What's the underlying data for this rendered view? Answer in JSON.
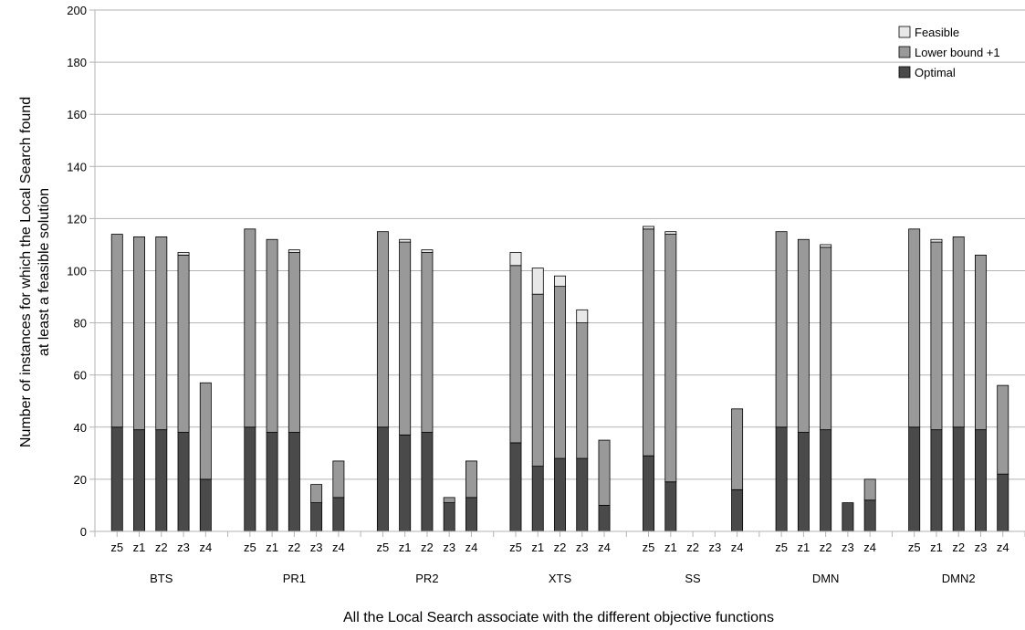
{
  "chart_data": {
    "type": "bar",
    "stacked": true,
    "title": "",
    "ylabel_lines": [
      "Number of instances for which the Local Search found",
      "at least a feasible solution"
    ],
    "xlabel": "All the Local Search associate with the different objective functions",
    "ylim": [
      0,
      200
    ],
    "yticks": [
      0,
      20,
      40,
      60,
      80,
      100,
      120,
      140,
      160,
      180,
      200
    ],
    "grid": true,
    "legend_position": "top-right",
    "groups": [
      "BTS",
      "PR1",
      "PR2",
      "XTS",
      "SS",
      "DMN",
      "DMN2"
    ],
    "subcategories": [
      "z5",
      "z1",
      "z2",
      "z3",
      "z4"
    ],
    "series": [
      {
        "name": "Optimal",
        "color": "#4a4a4a",
        "values": [
          [
            40,
            39,
            39,
            38,
            20
          ],
          [
            40,
            38,
            38,
            11,
            13
          ],
          [
            40,
            37,
            38,
            11,
            13
          ],
          [
            34,
            25,
            28,
            28,
            10
          ],
          [
            29,
            19,
            0,
            0,
            16
          ],
          [
            40,
            38,
            39,
            11,
            12
          ],
          [
            40,
            39,
            40,
            39,
            22
          ]
        ]
      },
      {
        "name": "Lower bound +1",
        "color": "#999999",
        "values": [
          [
            74,
            74,
            74,
            68,
            37
          ],
          [
            76,
            74,
            69,
            7,
            14
          ],
          [
            75,
            74,
            69,
            2,
            14
          ],
          [
            68,
            66,
            66,
            52,
            25
          ],
          [
            87,
            95,
            0,
            0,
            31
          ],
          [
            75,
            74,
            70,
            0,
            8
          ],
          [
            76,
            72,
            73,
            67,
            34
          ]
        ]
      },
      {
        "name": "Feasible",
        "color": "#e8e8e8",
        "values": [
          [
            0,
            0,
            0,
            1,
            0
          ],
          [
            0,
            0,
            1,
            0,
            0
          ],
          [
            0,
            1,
            1,
            0,
            0
          ],
          [
            5,
            10,
            4,
            5,
            0
          ],
          [
            1,
            1,
            0,
            0,
            0
          ],
          [
            0,
            0,
            1,
            0,
            0
          ],
          [
            0,
            1,
            0,
            0,
            0
          ]
        ]
      }
    ]
  }
}
